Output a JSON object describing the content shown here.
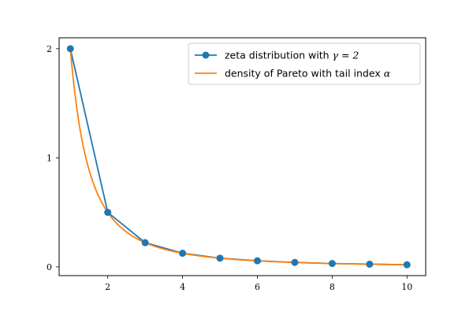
{
  "chart_data": {
    "type": "line",
    "title": "",
    "xlabel": "",
    "ylabel": "",
    "xlim": [
      0.7,
      10.5
    ],
    "ylim": [
      -0.08,
      2.1
    ],
    "xticks": [
      2,
      4,
      6,
      8,
      10
    ],
    "yticks": [
      0,
      1,
      2
    ],
    "grid": false,
    "legend_position": "top-right",
    "series": [
      {
        "name": "zeta distribution with γ = 2",
        "legend_prefix": "zeta distribution with ",
        "legend_math": "γ = 2",
        "kind": "line-markers",
        "color": "#1f77b4",
        "x": [
          1,
          2,
          3,
          4,
          5,
          6,
          7,
          8,
          9,
          10
        ],
        "y": [
          2.0,
          0.5,
          0.222,
          0.125,
          0.08,
          0.056,
          0.041,
          0.031,
          0.025,
          0.02
        ]
      },
      {
        "name": "density of Pareto with tail index α",
        "legend_prefix": "density of Pareto with tail index ",
        "legend_math": "α",
        "kind": "curve",
        "color": "#ff7f0e",
        "function": "2 * x^-2",
        "x_range": [
          1,
          10
        ]
      }
    ]
  }
}
